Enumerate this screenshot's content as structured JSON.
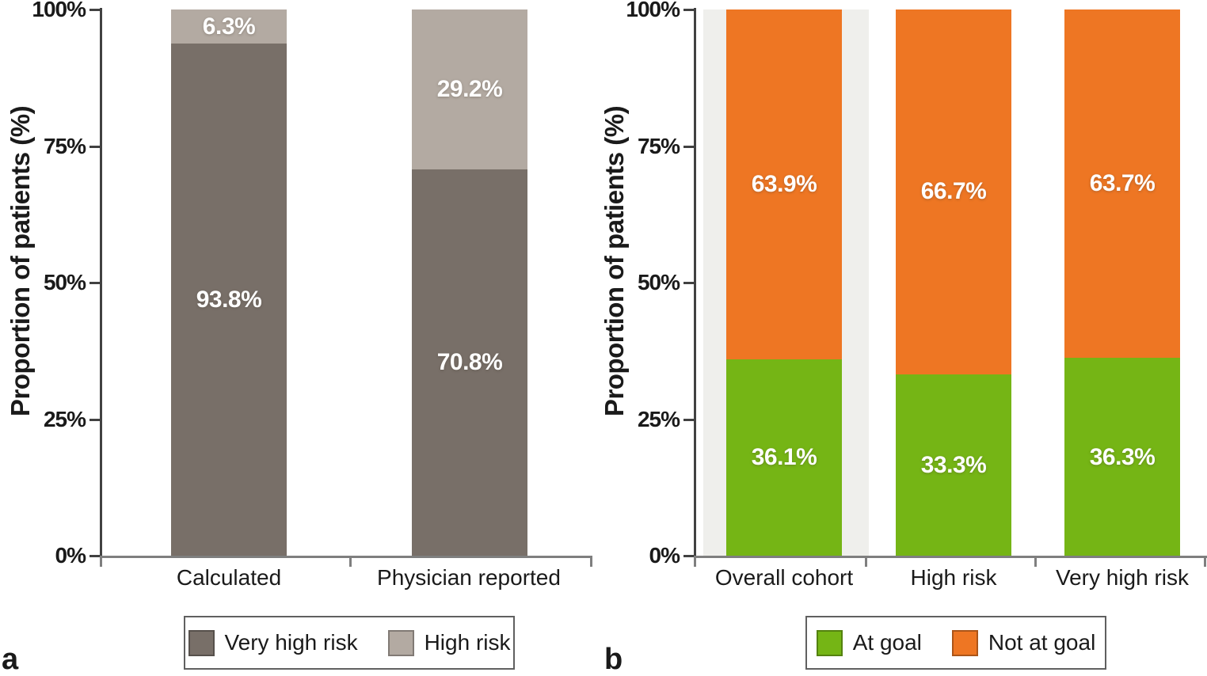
{
  "panel_letters": {
    "a": "a",
    "b": "b"
  },
  "chart_data": [
    {
      "type": "bar",
      "stacked": true,
      "panel": "a",
      "title": "",
      "xlabel": "",
      "ylabel": "Proportion of patients (%)",
      "ylim": [
        0,
        100
      ],
      "yticks": [
        "0%",
        "25%",
        "50%",
        "75%",
        "100%"
      ],
      "grid": false,
      "legend_position": "bottom",
      "categories": [
        "Calculated",
        "Physician reported"
      ],
      "series": [
        {
          "name": "Very high risk",
          "color": "#786f68",
          "values": [
            93.8,
            70.8
          ],
          "labels": [
            "93.8%",
            "70.8%"
          ]
        },
        {
          "name": "High risk",
          "color": "#b3aaa2",
          "values": [
            6.3,
            29.2
          ],
          "labels": [
            "6.3%",
            "29.2%"
          ]
        }
      ]
    },
    {
      "type": "bar",
      "stacked": true,
      "panel": "b",
      "title": "",
      "xlabel": "",
      "ylabel": "Proportion of patients (%)",
      "ylim": [
        0,
        100
      ],
      "yticks": [
        "0%",
        "25%",
        "50%",
        "75%",
        "100%"
      ],
      "grid": false,
      "legend_position": "bottom",
      "categories": [
        "Overall cohort",
        "High risk",
        "Very high risk"
      ],
      "highlight_band": {
        "category": "Overall cohort",
        "color": "#efefec"
      },
      "series": [
        {
          "name": "At goal",
          "color": "#75b515",
          "values": [
            36.1,
            33.3,
            36.3
          ],
          "labels": [
            "36.1%",
            "33.3%",
            "36.3%"
          ]
        },
        {
          "name": "Not at goal",
          "color": "#ee7623",
          "values": [
            63.9,
            66.7,
            63.7
          ],
          "labels": [
            "63.9%",
            "66.7%",
            "63.7%"
          ]
        }
      ]
    }
  ]
}
